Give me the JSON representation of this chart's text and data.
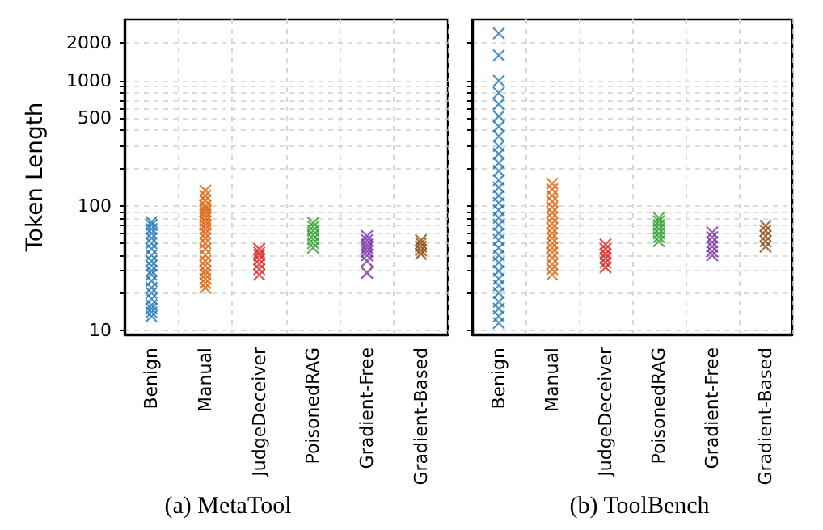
{
  "chart_data": [
    {
      "type": "scatter",
      "title": "(a) MetaTool",
      "ylabel": "Token Length",
      "categories": [
        "Benign",
        "Manual",
        "JudgeDeceiver",
        "PoisonedRAG",
        "Gradient-Free",
        "Gradient-Based"
      ],
      "log": true,
      "grid": true,
      "marker": "cross",
      "ylim": [
        9.3,
        3100
      ],
      "yticks": [
        10,
        {
          "value": 20,
          "label": null
        },
        {
          "value": 30,
          "label": null
        },
        {
          "value": 40,
          "label": null
        },
        {
          "value": 50,
          "label": null
        },
        {
          "value": 60,
          "label": null
        },
        {
          "value": 70,
          "label": null
        },
        {
          "value": 80,
          "label": null
        },
        {
          "value": 90,
          "label": null
        },
        100,
        {
          "value": 200,
          "label": null
        },
        {
          "value": 300,
          "label": null
        },
        {
          "value": 400,
          "label": null
        },
        500,
        {
          "value": 600,
          "label": null
        },
        {
          "value": 700,
          "label": null
        },
        {
          "value": 800,
          "label": null
        },
        {
          "value": 900,
          "label": null
        },
        1000,
        2000
      ],
      "series": [
        {
          "color": "#1f77b4",
          "x": [
            "Benign",
            "Benign",
            "Benign",
            "Benign",
            "Benign",
            "Benign",
            "Benign",
            "Benign",
            "Benign",
            "Benign",
            "Benign",
            "Benign",
            "Benign",
            "Benign",
            "Benign",
            "Benign",
            "Benign",
            "Benign",
            "Benign",
            "Benign"
          ],
          "values": [
            13,
            14,
            15,
            16,
            18,
            20,
            22,
            25,
            28,
            30,
            33,
            36,
            40,
            45,
            50,
            55,
            60,
            65,
            70,
            74
          ]
        },
        {
          "color": "#d9640f",
          "x": [
            "Manual",
            "Manual",
            "Manual",
            "Manual",
            "Manual",
            "Manual",
            "Manual",
            "Manual",
            "Manual",
            "Manual",
            "Manual",
            "Manual",
            "Manual",
            "Manual",
            "Manual",
            "Manual",
            "Manual",
            "Manual",
            "Manual",
            "Manual",
            "Manual",
            "Manual",
            "Manual"
          ],
          "values": [
            22,
            24,
            26,
            28,
            30,
            33,
            36,
            40,
            45,
            50,
            55,
            60,
            65,
            70,
            75,
            80,
            85,
            90,
            95,
            100,
            110,
            120,
            132
          ]
        },
        {
          "color": "#d62728",
          "x": [
            "JudgeDeceiver",
            "JudgeDeceiver",
            "JudgeDeceiver",
            "JudgeDeceiver",
            "JudgeDeceiver",
            "JudgeDeceiver",
            "JudgeDeceiver"
          ],
          "values": [
            28,
            31,
            34,
            37,
            40,
            42,
            45
          ]
        },
        {
          "color": "#2ca02c",
          "x": [
            "PoisonedRAG",
            "PoisonedRAG",
            "PoisonedRAG",
            "PoisonedRAG",
            "PoisonedRAG",
            "PoisonedRAG",
            "PoisonedRAG"
          ],
          "values": [
            46,
            50,
            54,
            58,
            63,
            68,
            73
          ]
        },
        {
          "color": "#7b2fa8",
          "x": [
            "Gradient-Free",
            "Gradient-Free",
            "Gradient-Free",
            "Gradient-Free",
            "Gradient-Free",
            "Gradient-Free",
            "Gradient-Free",
            "Gradient-Free"
          ],
          "values": [
            29,
            36,
            40,
            43,
            46,
            49,
            53,
            57
          ]
        },
        {
          "color": "#8c4a12",
          "x": [
            "Gradient-Based",
            "Gradient-Based",
            "Gradient-Based",
            "Gradient-Based",
            "Gradient-Based"
          ],
          "values": [
            41,
            44,
            47,
            50,
            53
          ]
        }
      ]
    },
    {
      "type": "scatter",
      "title": "(b) ToolBench",
      "categories": [
        "Benign",
        "Manual",
        "JudgeDeceiver",
        "PoisonedRAG",
        "Gradient-Free",
        "Gradient-Based"
      ],
      "log": true,
      "grid": true,
      "marker": "cross",
      "ylim": [
        9.3,
        3100
      ],
      "tick_labels": "x",
      "yticks": [
        10,
        {
          "value": 20,
          "label": null
        },
        {
          "value": 30,
          "label": null
        },
        {
          "value": 40,
          "label": null
        },
        {
          "value": 50,
          "label": null
        },
        {
          "value": 60,
          "label": null
        },
        {
          "value": 70,
          "label": null
        },
        {
          "value": 80,
          "label": null
        },
        {
          "value": 90,
          "label": null
        },
        100,
        {
          "value": 200,
          "label": null
        },
        {
          "value": 300,
          "label": null
        },
        {
          "value": 400,
          "label": null
        },
        500,
        {
          "value": 600,
          "label": null
        },
        {
          "value": 700,
          "label": null
        },
        {
          "value": 800,
          "label": null
        },
        {
          "value": 900,
          "label": null
        },
        1000,
        2000
      ],
      "series": [
        {
          "color": "#1f77b4",
          "x": [
            "Benign",
            "Benign",
            "Benign",
            "Benign",
            "Benign",
            "Benign",
            "Benign",
            "Benign",
            "Benign",
            "Benign",
            "Benign",
            "Benign",
            "Benign",
            "Benign",
            "Benign",
            "Benign",
            "Benign",
            "Benign",
            "Benign",
            "Benign",
            "Benign",
            "Benign",
            "Benign",
            "Benign",
            "Benign",
            "Benign",
            "Benign",
            "Benign",
            "Benign",
            "Benign",
            "Benign",
            "Benign"
          ],
          "values": [
            11.5,
            13,
            15,
            17,
            20,
            23,
            26,
            30,
            35,
            40,
            46,
            53,
            60,
            70,
            80,
            92,
            105,
            120,
            140,
            160,
            190,
            220,
            260,
            300,
            360,
            430,
            520,
            650,
            800,
            1000,
            1600,
            2400
          ]
        },
        {
          "color": "#d9640f",
          "x": [
            "Manual",
            "Manual",
            "Manual",
            "Manual",
            "Manual",
            "Manual",
            "Manual",
            "Manual",
            "Manual",
            "Manual",
            "Manual",
            "Manual",
            "Manual",
            "Manual",
            "Manual",
            "Manual",
            "Manual",
            "Manual"
          ],
          "values": [
            28,
            31,
            34,
            38,
            42,
            46,
            50,
            55,
            60,
            66,
            72,
            80,
            88,
            97,
            108,
            120,
            135,
            150
          ]
        },
        {
          "color": "#d62728",
          "x": [
            "JudgeDeceiver",
            "JudgeDeceiver",
            "JudgeDeceiver",
            "JudgeDeceiver",
            "JudgeDeceiver",
            "JudgeDeceiver"
          ],
          "values": [
            32,
            35,
            38,
            41,
            45,
            49
          ]
        },
        {
          "color": "#2ca02c",
          "x": [
            "PoisonedRAG",
            "PoisonedRAG",
            "PoisonedRAG",
            "PoisonedRAG",
            "PoisonedRAG",
            "PoisonedRAG",
            "PoisonedRAG"
          ],
          "values": [
            52,
            56,
            60,
            65,
            70,
            75,
            80
          ]
        },
        {
          "color": "#7b2fa8",
          "x": [
            "Gradient-Free",
            "Gradient-Free",
            "Gradient-Free",
            "Gradient-Free",
            "Gradient-Free",
            "Gradient-Free"
          ],
          "values": [
            40,
            43,
            47,
            51,
            56,
            61
          ]
        },
        {
          "color": "#8c4a12",
          "x": [
            "Gradient-Based",
            "Gradient-Based",
            "Gradient-Based",
            "Gradient-Based",
            "Gradient-Based"
          ],
          "values": [
            47,
            52,
            57,
            63,
            69
          ]
        }
      ]
    }
  ]
}
